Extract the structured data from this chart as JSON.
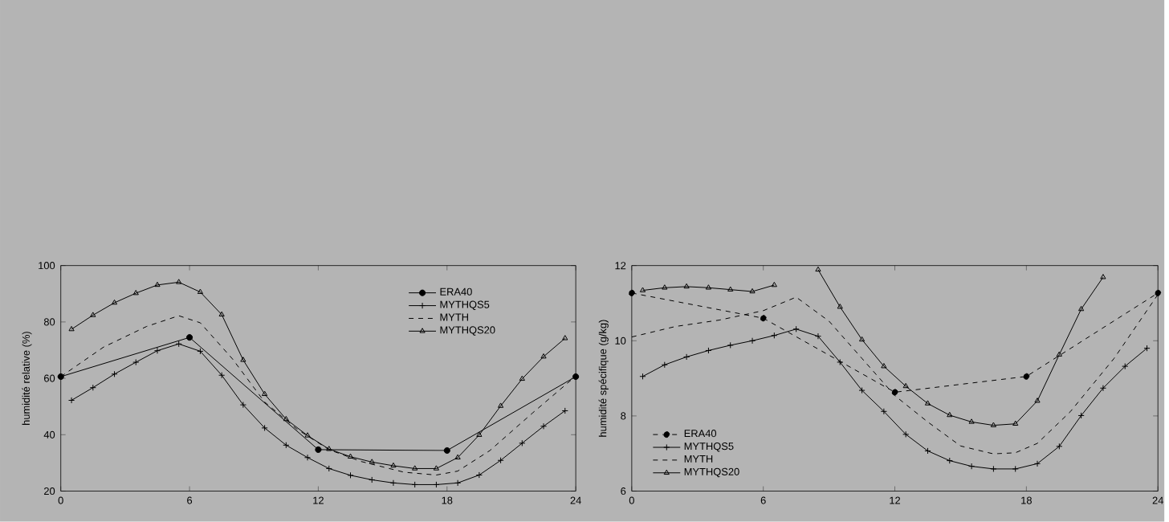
{
  "chart_data": [
    {
      "type": "line",
      "ylabel": "humidité relative (%)",
      "xlim": [
        0,
        24
      ],
      "ylim": [
        20,
        100
      ],
      "xticks": [
        0,
        6,
        12,
        18,
        24
      ],
      "yticks": [
        20,
        40,
        60,
        80,
        100
      ],
      "legend": "top right",
      "grid": false,
      "series": [
        {
          "name": "ERA40",
          "color": "#000000",
          "marker": "circle",
          "line_style": "solid",
          "x": [
            0,
            6,
            12,
            18,
            24
          ],
          "values": [
            60.6,
            74.5,
            34.7,
            34.4,
            60.6
          ]
        },
        {
          "name": "MYTHQS5",
          "color": "#000000",
          "marker": "cross",
          "line_style": "solid",
          "x": [
            0.5,
            1.5,
            2.5,
            3.5,
            4.5,
            5.5,
            6.5,
            7.5,
            8.5,
            9.5,
            10.5,
            11.5,
            12.5,
            13.5,
            14.5,
            15.5,
            16.5,
            17.5,
            18.5,
            19.5,
            20.5,
            21.5,
            22.5,
            23.5
          ],
          "values": [
            52.2,
            56.7,
            61.5,
            65.7,
            69.8,
            72.2,
            69.6,
            61.1,
            50.6,
            42.4,
            36.3,
            31.9,
            28,
            25.6,
            24,
            22.9,
            22.3,
            22.3,
            22.9,
            25.7,
            30.9,
            37,
            43,
            48.5
          ]
        },
        {
          "name": "MYTH",
          "color": "#000000",
          "marker": "none",
          "line_style": "dashed",
          "x": [
            0,
            2,
            4,
            5.5,
            6.5,
            8,
            9.5,
            11,
            12.5,
            14,
            16,
            17.5,
            18.5,
            20,
            22,
            24
          ],
          "values": [
            60.6,
            71.1,
            78.4,
            82.2,
            79.7,
            66.9,
            51.6,
            42,
            34.7,
            30.5,
            26.7,
            25.7,
            27.1,
            34.4,
            47.8,
            60.8
          ]
        },
        {
          "name": "MYTHQS20",
          "color": "#000000",
          "marker": "triangle",
          "line_style": "solid",
          "x": [
            0.5,
            1.5,
            2.5,
            3.5,
            4.5,
            5.5,
            6.5,
            7.5,
            8.5,
            9.5,
            10.5,
            11.5,
            12.5,
            13.5,
            14.5,
            15.5,
            16.5,
            17.5,
            18.5,
            19.5,
            20.5,
            21.5,
            22.5,
            23.5
          ],
          "values": [
            77.4,
            82.4,
            86.8,
            90.2,
            93.1,
            94.1,
            90.6,
            82.6,
            66.5,
            54.4,
            45.5,
            39.7,
            34.9,
            32.2,
            30.3,
            29,
            28,
            28,
            31.9,
            39.9,
            50.2,
            59.8,
            67.7,
            74.2
          ]
        }
      ]
    },
    {
      "type": "line",
      "ylabel": "humidité spécifique (g/kg)",
      "xlim": [
        0,
        24
      ],
      "ylim": [
        6,
        12
      ],
      "xticks": [
        0,
        6,
        12,
        18,
        24
      ],
      "yticks": [
        6,
        8,
        10,
        12
      ],
      "legend": "bottom left",
      "grid": false,
      "series": [
        {
          "name": "ERA40",
          "color": "#000000",
          "marker": "circle",
          "line_style": "dashed",
          "x": [
            0,
            6,
            12,
            18,
            24
          ],
          "values": [
            11.27,
            10.6,
            8.63,
            9.05,
            11.27
          ]
        },
        {
          "name": "MYTHQS5",
          "color": "#000000",
          "marker": "cross",
          "line_style": "solid",
          "x": [
            0.5,
            1.5,
            2.5,
            3.5,
            4.5,
            5.5,
            6.5,
            7.5,
            8.5,
            9.5,
            10.5,
            11.5,
            12.5,
            13.5,
            14.5,
            15.5,
            16.5,
            17.5,
            18.5,
            19.5,
            20.5,
            21.5,
            22.5,
            23.5
          ],
          "values": [
            9.05,
            9.36,
            9.57,
            9.74,
            9.88,
            10.0,
            10.14,
            10.31,
            10.12,
            9.43,
            8.68,
            8.12,
            7.51,
            7.07,
            6.81,
            6.66,
            6.59,
            6.59,
            6.73,
            7.19,
            8.01,
            8.74,
            9.32,
            9.8
          ]
        },
        {
          "name": "MYTH",
          "color": "#000000",
          "marker": "none",
          "line_style": "dashed",
          "x": [
            0,
            2,
            4,
            6,
            7.5,
            9,
            10.5,
            12,
            13.5,
            15,
            16.5,
            17.5,
            18.5,
            20,
            22,
            24
          ],
          "values": [
            10.1,
            10.38,
            10.55,
            10.8,
            11.16,
            10.52,
            9.53,
            8.54,
            7.84,
            7.2,
            6.99,
            7.02,
            7.27,
            8.11,
            9.53,
            11.23
          ]
        },
        {
          "name": "MYTHQS20",
          "color": "#000000",
          "marker": "triangle",
          "line_style": "solid",
          "x": [
            0.5,
            1.5,
            2.5,
            3.5,
            4.5,
            5.5,
            6.5,
            7.5,
            8.5,
            9.5,
            10.5,
            11.5,
            12.5,
            13.5,
            14.5,
            15.5,
            16.5,
            17.5,
            18.5,
            19.5,
            20.5,
            21.5
          ],
          "values": [
            11.34,
            11.41,
            11.44,
            11.41,
            11.36,
            11.31,
            11.48,
            null,
            11.89,
            10.9,
            10.03,
            9.32,
            8.79,
            8.33,
            8.02,
            7.84,
            7.75,
            7.79,
            8.4,
            9.63,
            10.84,
            11.69
          ]
        }
      ]
    }
  ]
}
